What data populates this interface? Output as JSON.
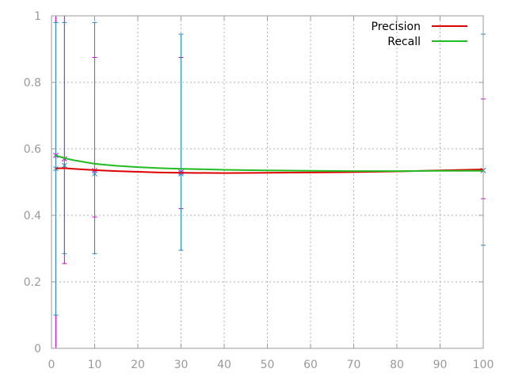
{
  "chart_data": {
    "type": "line",
    "title": "",
    "xlabel": "",
    "ylabel": "",
    "xlim": [
      0,
      100
    ],
    "ylim": [
      0,
      1
    ],
    "x_ticks": [
      "0",
      "10",
      "20",
      "30",
      "40",
      "50",
      "60",
      "70",
      "80",
      "90",
      "100"
    ],
    "y_ticks": [
      "0",
      "0.2",
      "0.4",
      "0.6",
      "0.8",
      "1"
    ],
    "grid": true,
    "legend_position": "top-right",
    "series": [
      {
        "name": "Precision",
        "color": "#dd0000",
        "x": [
          1,
          3,
          5,
          10,
          15,
          20,
          25,
          30,
          40,
          50,
          60,
          70,
          80,
          90,
          100
        ],
        "y": [
          0.541,
          0.542,
          0.54,
          0.536,
          0.533,
          0.531,
          0.529,
          0.528,
          0.527,
          0.528,
          0.529,
          0.53,
          0.532,
          0.535,
          0.538
        ]
      },
      {
        "name": "Recall",
        "color": "#22bb22",
        "x": [
          1,
          3,
          5,
          10,
          15,
          20,
          25,
          30,
          40,
          50,
          60,
          70,
          80,
          90,
          100
        ],
        "y": [
          0.58,
          0.572,
          0.566,
          0.555,
          0.549,
          0.545,
          0.542,
          0.54,
          0.537,
          0.535,
          0.534,
          0.533,
          0.533,
          0.534,
          0.534
        ]
      }
    ],
    "error_bars": [
      {
        "x": 1,
        "y": 0.58,
        "low": 0.0,
        "high": 1.0,
        "color": "#cc00cc"
      },
      {
        "x": 1,
        "y": 0.54,
        "low": 0.1,
        "high": 0.98,
        "color": "#2288bb"
      },
      {
        "x": 3,
        "y": 0.57,
        "low": 0.255,
        "high": 1.0,
        "color": "#cc00cc"
      },
      {
        "x": 3,
        "y": 0.55,
        "low": 0.285,
        "high": 0.98,
        "color": "#2288bb"
      },
      {
        "x": 10,
        "y": 0.535,
        "low": 0.395,
        "high": 0.875,
        "color": "#cc00cc"
      },
      {
        "x": 10,
        "y": 0.525,
        "low": 0.285,
        "high": 0.98,
        "color": "#2288bb"
      },
      {
        "x": 30,
        "y": 0.53,
        "low": 0.42,
        "high": 0.875,
        "color": "#cc00cc"
      },
      {
        "x": 30,
        "y": 0.525,
        "low": 0.295,
        "high": 0.945,
        "color": "#2288bb"
      },
      {
        "x": 100,
        "y": 0.535,
        "low": 0.45,
        "high": 0.75,
        "color": "#cc00cc"
      },
      {
        "x": 100,
        "y": 0.535,
        "low": 0.31,
        "high": 0.945,
        "color": "#2288bb"
      }
    ]
  }
}
